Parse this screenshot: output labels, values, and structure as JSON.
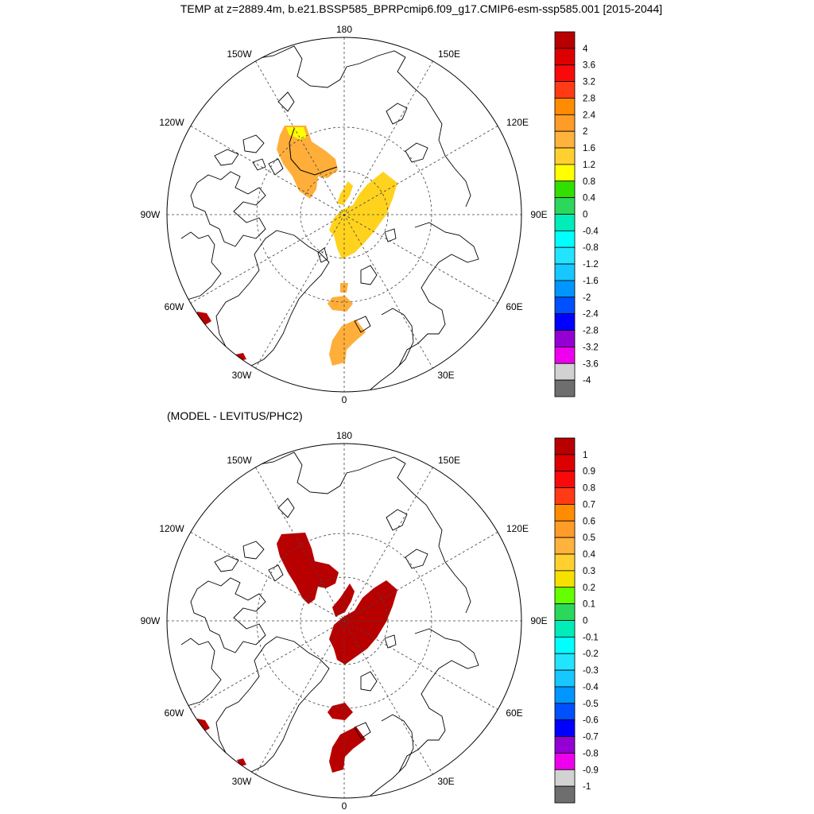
{
  "title": "TEMP at z=2889.4m, b.e21.BSSP585_BPRPcmip6.f09_g17.CMIP6-esm-ssp585.001 [2015-2044]",
  "subtitle": "(MODEL - LEVITUS/PHC2)",
  "longitude_labels": {
    "lon_180": "180",
    "lon_150e": "150E",
    "lon_120e": "120E",
    "lon_90e": "90E",
    "lon_60e": "60E",
    "lon_30e": "30E",
    "lon_0": "0",
    "lon_30w": "30W",
    "lon_60w": "60W",
    "lon_90w": "90W",
    "lon_120w": "120W",
    "lon_150w": "150W"
  },
  "panels": {
    "top": {
      "colorbar_labels": [
        "4",
        "3.6",
        "3.2",
        "2.8",
        "2.4",
        "2",
        "1.6",
        "1.2",
        "0.8",
        "0.4",
        "0",
        "-0.4",
        "-0.8",
        "-1.2",
        "-1.6",
        "-2",
        "-2.4",
        "-2.8",
        "-3.2",
        "-3.6",
        "-4"
      ],
      "colorbar_colors": [
        "#b80000",
        "#dd0000",
        "#f80a0a",
        "#ff3a14",
        "#ff8c00",
        "#ff9c28",
        "#ffb23c",
        "#ffd030",
        "#ffff00",
        "#31e000",
        "#2cd85c",
        "#00ecb8",
        "#00ffff",
        "#22e4ff",
        "#16c8ff",
        "#0096ff",
        "#0050ff",
        "#0000ff",
        "#9400d3",
        "#ee00ee",
        "#d2d2d2",
        "#6e6e6e"
      ]
    },
    "bottom": {
      "colorbar_labels": [
        "1",
        "0.9",
        "0.8",
        "0.7",
        "0.6",
        "0.5",
        "0.4",
        "0.3",
        "0.2",
        "0.1",
        "0",
        "-0.1",
        "-0.2",
        "-0.3",
        "-0.4",
        "-0.5",
        "-0.6",
        "-0.7",
        "-0.8",
        "-0.9",
        "-1"
      ],
      "colorbar_colors": [
        "#b80000",
        "#dd0000",
        "#f80a0a",
        "#ff3a14",
        "#ff8c00",
        "#ff9c28",
        "#ffb23c",
        "#ffd030",
        "#f6e000",
        "#66ff00",
        "#2cd85c",
        "#00ecb8",
        "#00ffff",
        "#22e4ff",
        "#16c8ff",
        "#0096ff",
        "#0050ff",
        "#0000ff",
        "#9400d3",
        "#ee00ee",
        "#d2d2d2",
        "#6e6e6e"
      ]
    }
  },
  "colors": {
    "top_yellow": "#ffd21e",
    "top_orange": "#ffae3a",
    "top_bright_yellow": "#ffff00",
    "top_red": "#b80000",
    "bottom_red": "#b80000"
  }
}
